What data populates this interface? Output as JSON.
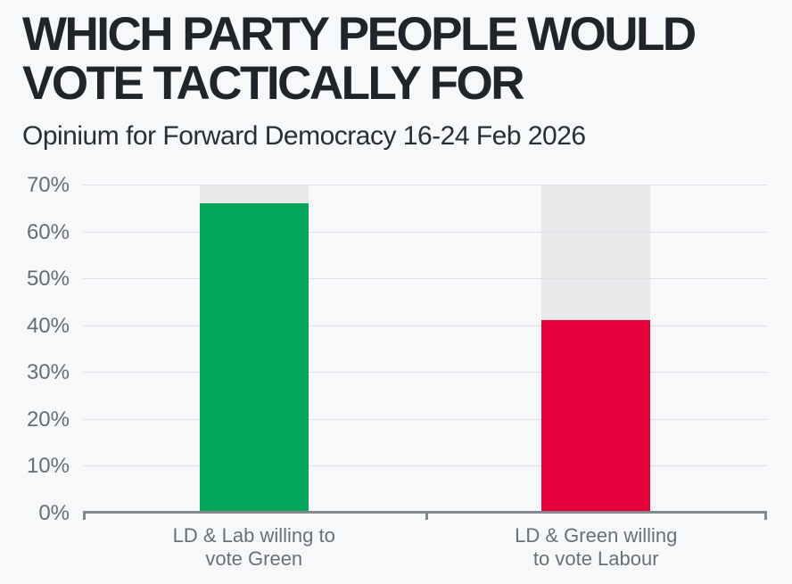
{
  "page": {
    "background_color": "#f7f8fa"
  },
  "header": {
    "title": "WHICH PARTY PEOPLE WOULD VOTE TACTICALLY FOR",
    "subtitle": "Opinium for Forward Democracy 16-24 Feb 2026"
  },
  "chart_data": {
    "type": "bar",
    "title": "WHICH PARTY PEOPLE WOULD VOTE TACTICALLY FOR",
    "subtitle": "Opinium for Forward Democracy 16-24 Feb 2026",
    "categories": [
      "LD & Lab willing to vote Green",
      "LD & Green willing to vote Labour"
    ],
    "values": [
      66,
      41
    ],
    "bar_colors": [
      "#04a65c",
      "#e4003b"
    ],
    "track_color": "#e9e9eb",
    "track_max": 70,
    "xlabel": "",
    "ylabel": "",
    "ylim": [
      0,
      70
    ],
    "yticks": [
      0,
      10,
      20,
      30,
      40,
      50,
      60,
      70
    ],
    "ytick_suffix": "%",
    "grid": true,
    "legend": "none",
    "axis_color": "#83878e",
    "gridline_color": "#dcdfe9",
    "tick_label_color": "#676c75",
    "title_color": "#20242b",
    "subtitle_color": "#2a2e35"
  }
}
